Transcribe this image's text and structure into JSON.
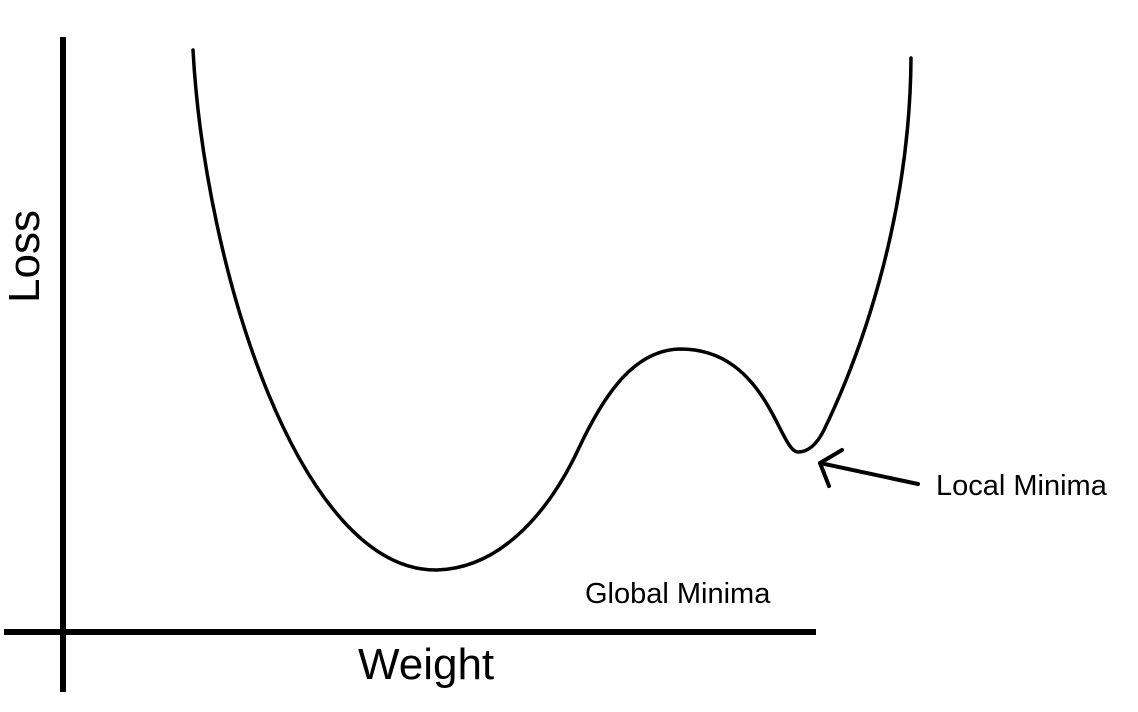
{
  "diagram": {
    "axes": {
      "y_label": "Loss",
      "x_label": "Weight"
    },
    "annotations": {
      "local_minima": "Local Minima",
      "global_minima": "Global Minima"
    },
    "colors": {
      "ink": "#000000",
      "background": "#ffffff"
    }
  }
}
